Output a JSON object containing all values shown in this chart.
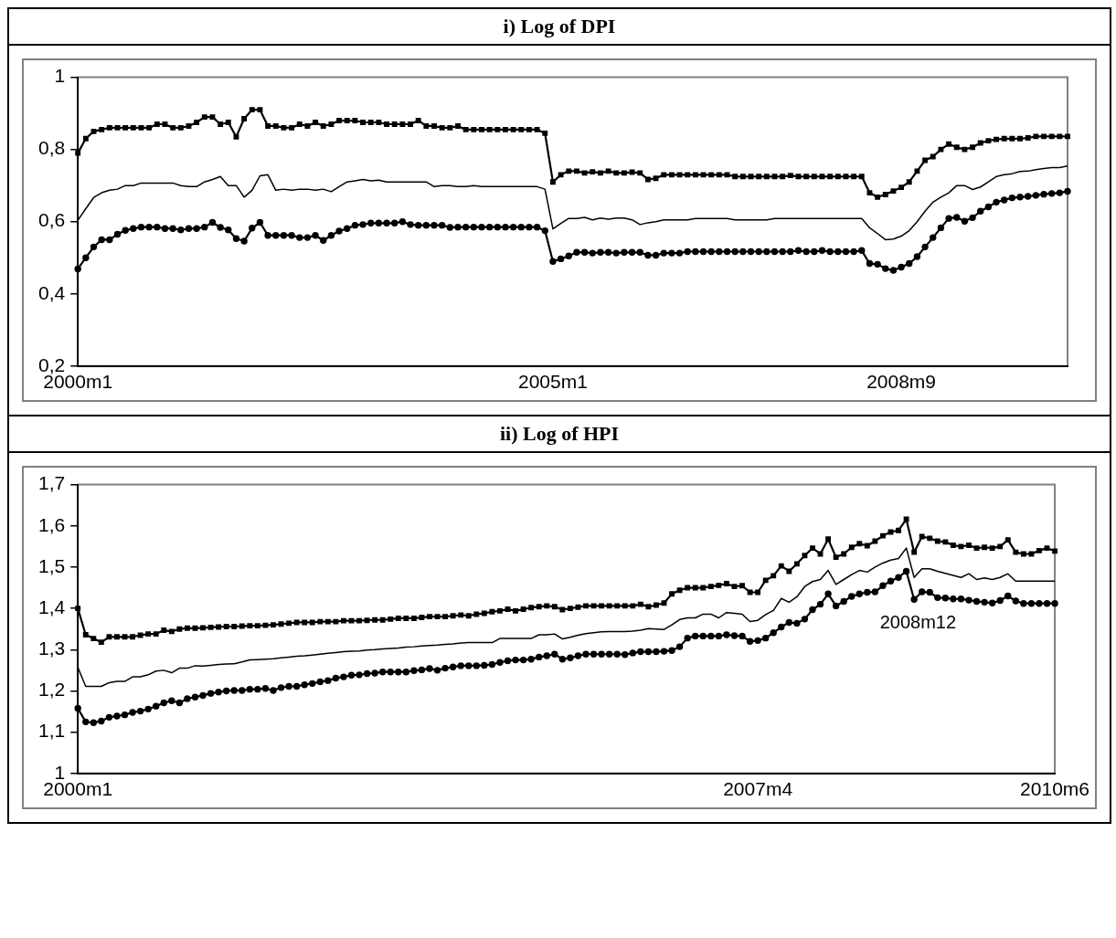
{
  "chart_data": [
    {
      "type": "line",
      "title": "i) Log of DPI",
      "categories": [
        "2000m1",
        null,
        null,
        null,
        null,
        null,
        null,
        null,
        null,
        null,
        null,
        null,
        null,
        null,
        null,
        null,
        null,
        null,
        null,
        null,
        null,
        null,
        null,
        null,
        null,
        null,
        null,
        null,
        null,
        null,
        null,
        null,
        null,
        null,
        null,
        null,
        null,
        null,
        null,
        null,
        null,
        null,
        null,
        null,
        null,
        null,
        null,
        null,
        null,
        null,
        null,
        null,
        null,
        null,
        null,
        null,
        null,
        null,
        null,
        null,
        "2005m1",
        null,
        null,
        null,
        null,
        null,
        null,
        null,
        null,
        null,
        null,
        null,
        null,
        null,
        null,
        null,
        null,
        null,
        null,
        null,
        null,
        null,
        null,
        null,
        null,
        null,
        null,
        null,
        null,
        null,
        null,
        null,
        null,
        null,
        null,
        null,
        null,
        null,
        null,
        null,
        null,
        null,
        null,
        null,
        "2008m9",
        null,
        null,
        null,
        null,
        null,
        null,
        null,
        null,
        null,
        null,
        null,
        null,
        null,
        null,
        null,
        null,
        null,
        null,
        null,
        null,
        null
      ],
      "ylim": [
        0.2,
        1
      ],
      "yticks": [
        {
          "value": 0.2,
          "label": "0,2"
        },
        {
          "value": 0.4,
          "label": "0,4"
        },
        {
          "value": 0.6,
          "label": "0,6"
        },
        {
          "value": 0.8,
          "label": "0,8"
        },
        1
      ],
      "grid": false,
      "legend": false,
      "series": [
        {
          "color": "#000000",
          "marker": "square",
          "values": [
            0.79,
            0.83,
            0.85,
            0.855,
            0.86,
            0.86,
            0.86,
            0.86,
            0.86,
            0.86,
            0.87,
            0.87,
            0.86,
            0.86,
            0.865,
            0.875,
            0.89,
            0.89,
            0.87,
            0.875,
            0.835,
            0.885,
            0.91,
            0.91,
            0.865,
            0.865,
            0.86,
            0.86,
            0.87,
            0.865,
            0.875,
            0.865,
            0.87,
            0.88,
            0.88,
            0.88,
            0.875,
            0.875,
            0.875,
            0.87,
            0.87,
            0.87,
            0.87,
            0.88,
            0.865,
            0.865,
            0.86,
            0.86,
            0.865,
            0.855,
            0.855,
            0.855,
            0.855,
            0.855,
            0.855,
            0.855,
            0.855,
            0.855,
            0.855,
            0.845,
            0.71,
            0.73,
            0.74,
            0.74,
            0.735,
            0.738,
            0.735,
            0.74,
            0.735,
            0.735,
            0.737,
            0.735,
            0.717,
            0.72,
            0.73,
            0.73,
            0.73,
            0.73,
            0.73,
            0.73,
            0.73,
            0.73,
            0.73,
            0.725,
            0.725,
            0.725,
            0.725,
            0.725,
            0.725,
            0.725,
            0.728,
            0.725,
            0.725,
            0.725,
            0.725,
            0.725,
            0.725,
            0.725,
            0.725,
            0.725,
            0.68,
            0.668,
            0.675,
            0.685,
            0.695,
            0.71,
            0.74,
            0.77,
            0.78,
            0.8,
            0.815,
            0.806,
            0.8,
            0.806,
            0.818,
            0.824,
            0.828,
            0.83,
            0.83,
            0.83,
            0.832,
            0.836,
            0.836,
            0.836,
            0.836,
            0.836
          ]
        },
        {
          "color": "#000000",
          "marker": "none",
          "values": [
            0.604,
            0.636,
            0.667,
            0.68,
            0.687,
            0.69,
            0.7,
            0.7,
            0.707,
            0.707,
            0.707,
            0.707,
            0.707,
            0.7,
            0.697,
            0.697,
            0.71,
            0.717,
            0.725,
            0.7,
            0.7,
            0.668,
            0.687,
            0.727,
            0.73,
            0.687,
            0.69,
            0.687,
            0.69,
            0.69,
            0.687,
            0.69,
            0.683,
            0.697,
            0.71,
            0.713,
            0.717,
            0.713,
            0.715,
            0.71,
            0.71,
            0.71,
            0.71,
            0.71,
            0.71,
            0.697,
            0.7,
            0.7,
            0.697,
            0.697,
            0.7,
            0.697,
            0.697,
            0.697,
            0.697,
            0.697,
            0.697,
            0.697,
            0.697,
            0.69,
            0.58,
            0.595,
            0.609,
            0.609,
            0.612,
            0.605,
            0.61,
            0.607,
            0.61,
            0.61,
            0.605,
            0.592,
            0.597,
            0.6,
            0.605,
            0.605,
            0.605,
            0.605,
            0.609,
            0.609,
            0.609,
            0.609,
            0.609,
            0.605,
            0.605,
            0.605,
            0.605,
            0.605,
            0.609,
            0.609,
            0.609,
            0.609,
            0.609,
            0.609,
            0.609,
            0.609,
            0.609,
            0.609,
            0.609,
            0.609,
            0.583,
            0.567,
            0.55,
            0.552,
            0.56,
            0.575,
            0.6,
            0.629,
            0.654,
            0.668,
            0.68,
            0.7,
            0.7,
            0.689,
            0.696,
            0.71,
            0.725,
            0.73,
            0.733,
            0.739,
            0.74,
            0.744,
            0.747,
            0.75,
            0.75,
            0.754
          ]
        },
        {
          "color": "#000000",
          "marker": "circle",
          "values": [
            0.469,
            0.5,
            0.53,
            0.55,
            0.55,
            0.565,
            0.576,
            0.581,
            0.585,
            0.585,
            0.585,
            0.581,
            0.581,
            0.577,
            0.581,
            0.581,
            0.585,
            0.598,
            0.584,
            0.577,
            0.553,
            0.546,
            0.582,
            0.598,
            0.562,
            0.562,
            0.562,
            0.562,
            0.556,
            0.556,
            0.562,
            0.548,
            0.562,
            0.574,
            0.581,
            0.59,
            0.592,
            0.596,
            0.596,
            0.596,
            0.596,
            0.6,
            0.592,
            0.59,
            0.59,
            0.59,
            0.59,
            0.584,
            0.585,
            0.585,
            0.585,
            0.585,
            0.585,
            0.585,
            0.585,
            0.585,
            0.585,
            0.585,
            0.585,
            0.575,
            0.49,
            0.497,
            0.505,
            0.515,
            0.515,
            0.513,
            0.515,
            0.515,
            0.513,
            0.515,
            0.515,
            0.515,
            0.507,
            0.507,
            0.513,
            0.513,
            0.513,
            0.517,
            0.517,
            0.517,
            0.517,
            0.517,
            0.517,
            0.517,
            0.517,
            0.517,
            0.517,
            0.517,
            0.517,
            0.517,
            0.517,
            0.52,
            0.517,
            0.517,
            0.52,
            0.517,
            0.517,
            0.517,
            0.517,
            0.52,
            0.484,
            0.482,
            0.47,
            0.465,
            0.474,
            0.484,
            0.503,
            0.53,
            0.556,
            0.583,
            0.609,
            0.612,
            0.601,
            0.611,
            0.629,
            0.641,
            0.654,
            0.66,
            0.666,
            0.668,
            0.67,
            0.673,
            0.676,
            0.678,
            0.68,
            0.684
          ]
        }
      ]
    },
    {
      "type": "line",
      "title": "ii) Log of HPI",
      "categories": [
        "2000m1",
        null,
        null,
        null,
        null,
        null,
        null,
        null,
        null,
        null,
        null,
        null,
        null,
        null,
        null,
        null,
        null,
        null,
        null,
        null,
        null,
        null,
        null,
        null,
        null,
        null,
        null,
        null,
        null,
        null,
        null,
        null,
        null,
        null,
        null,
        null,
        null,
        null,
        null,
        null,
        null,
        null,
        null,
        null,
        null,
        null,
        null,
        null,
        null,
        null,
        null,
        null,
        null,
        null,
        null,
        null,
        null,
        null,
        null,
        null,
        null,
        null,
        null,
        null,
        null,
        null,
        null,
        null,
        null,
        null,
        null,
        null,
        null,
        null,
        null,
        null,
        null,
        null,
        null,
        null,
        null,
        null,
        null,
        null,
        null,
        null,
        null,
        "2007m4",
        null,
        null,
        null,
        null,
        null,
        null,
        null,
        null,
        null,
        null,
        null,
        null,
        null,
        null,
        null,
        null,
        null,
        null,
        null,
        null,
        null,
        null,
        null,
        null,
        null,
        null,
        null,
        null,
        null,
        null,
        null,
        null,
        null,
        null,
        null,
        null,
        null,
        "2010m6"
      ],
      "ylim": [
        1,
        1.7
      ],
      "yticks": [
        1,
        {
          "value": 1.1,
          "label": "1,1"
        },
        {
          "value": 1.2,
          "label": "1,2"
        },
        {
          "value": 1.3,
          "label": "1,3"
        },
        {
          "value": 1.4,
          "label": "1,4"
        },
        {
          "value": 1.5,
          "label": "1,5"
        },
        {
          "value": 1.6,
          "label": "1,6"
        },
        {
          "value": 1.7,
          "label": "1,7"
        }
      ],
      "grid": false,
      "legend": false,
      "annotations": [
        "2008m12"
      ],
      "series": [
        {
          "color": "#000000",
          "marker": "square",
          "values": [
            1.4,
            1.336,
            1.327,
            1.318,
            1.331,
            1.331,
            1.331,
            1.331,
            1.335,
            1.338,
            1.338,
            1.347,
            1.344,
            1.35,
            1.352,
            1.352,
            1.353,
            1.354,
            1.355,
            1.356,
            1.356,
            1.357,
            1.358,
            1.358,
            1.359,
            1.36,
            1.362,
            1.364,
            1.366,
            1.366,
            1.366,
            1.368,
            1.368,
            1.368,
            1.37,
            1.37,
            1.37,
            1.371,
            1.372,
            1.372,
            1.374,
            1.376,
            1.376,
            1.376,
            1.378,
            1.38,
            1.38,
            1.38,
            1.382,
            1.384,
            1.382,
            1.386,
            1.388,
            1.392,
            1.394,
            1.398,
            1.394,
            1.398,
            1.402,
            1.404,
            1.406,
            1.404,
            1.397,
            1.4,
            1.403,
            1.406,
            1.406,
            1.406,
            1.406,
            1.406,
            1.406,
            1.406,
            1.41,
            1.404,
            1.408,
            1.413,
            1.435,
            1.444,
            1.45,
            1.45,
            1.45,
            1.453,
            1.456,
            1.46,
            1.453,
            1.455,
            1.439,
            1.439,
            1.468,
            1.479,
            1.503,
            1.49,
            1.508,
            1.528,
            1.546,
            1.532,
            1.568,
            1.524,
            1.532,
            1.548,
            1.557,
            1.552,
            1.563,
            1.576,
            1.585,
            1.589,
            1.616,
            1.536,
            1.574,
            1.57,
            1.563,
            1.561,
            1.553,
            1.55,
            1.553,
            1.546,
            1.548,
            1.546,
            1.55,
            1.566,
            1.536,
            1.532,
            1.532,
            1.54,
            1.546,
            1.539
          ]
        },
        {
          "color": "#000000",
          "marker": "none",
          "values": [
            1.257,
            1.211,
            1.211,
            1.211,
            1.22,
            1.223,
            1.223,
            1.234,
            1.234,
            1.239,
            1.248,
            1.25,
            1.244,
            1.255,
            1.255,
            1.261,
            1.26,
            1.262,
            1.264,
            1.265,
            1.266,
            1.27,
            1.275,
            1.276,
            1.277,
            1.278,
            1.28,
            1.282,
            1.284,
            1.285,
            1.287,
            1.289,
            1.291,
            1.293,
            1.295,
            1.296,
            1.297,
            1.299,
            1.3,
            1.302,
            1.303,
            1.304,
            1.306,
            1.307,
            1.309,
            1.31,
            1.311,
            1.313,
            1.314,
            1.316,
            1.317,
            1.317,
            1.317,
            1.317,
            1.327,
            1.327,
            1.327,
            1.327,
            1.327,
            1.336,
            1.336,
            1.338,
            1.326,
            1.33,
            1.335,
            1.339,
            1.341,
            1.343,
            1.344,
            1.344,
            1.344,
            1.345,
            1.347,
            1.351,
            1.35,
            1.349,
            1.36,
            1.373,
            1.377,
            1.377,
            1.386,
            1.386,
            1.377,
            1.39,
            1.388,
            1.386,
            1.368,
            1.371,
            1.385,
            1.395,
            1.424,
            1.415,
            1.428,
            1.453,
            1.465,
            1.47,
            1.492,
            1.458,
            1.47,
            1.482,
            1.492,
            1.488,
            1.5,
            1.51,
            1.517,
            1.521,
            1.546,
            1.475,
            1.496,
            1.496,
            1.49,
            1.485,
            1.48,
            1.475,
            1.484,
            1.47,
            1.474,
            1.47,
            1.475,
            1.484,
            1.466,
            1.466,
            1.466,
            1.466,
            1.466,
            1.466
          ]
        },
        {
          "color": "#000000",
          "marker": "circle",
          "values": [
            1.158,
            1.125,
            1.123,
            1.127,
            1.136,
            1.139,
            1.142,
            1.148,
            1.151,
            1.156,
            1.163,
            1.171,
            1.176,
            1.171,
            1.181,
            1.185,
            1.189,
            1.194,
            1.197,
            1.2,
            1.201,
            1.201,
            1.204,
            1.204,
            1.206,
            1.201,
            1.208,
            1.211,
            1.211,
            1.215,
            1.218,
            1.222,
            1.225,
            1.231,
            1.234,
            1.238,
            1.239,
            1.242,
            1.243,
            1.246,
            1.246,
            1.246,
            1.246,
            1.249,
            1.251,
            1.254,
            1.25,
            1.255,
            1.258,
            1.261,
            1.261,
            1.261,
            1.262,
            1.264,
            1.269,
            1.273,
            1.275,
            1.275,
            1.277,
            1.282,
            1.285,
            1.289,
            1.277,
            1.28,
            1.285,
            1.289,
            1.289,
            1.289,
            1.289,
            1.289,
            1.288,
            1.292,
            1.295,
            1.295,
            1.295,
            1.296,
            1.298,
            1.307,
            1.328,
            1.333,
            1.333,
            1.333,
            1.333,
            1.336,
            1.334,
            1.333,
            1.32,
            1.322,
            1.328,
            1.341,
            1.355,
            1.366,
            1.364,
            1.374,
            1.397,
            1.41,
            1.435,
            1.406,
            1.417,
            1.429,
            1.435,
            1.439,
            1.44,
            1.455,
            1.466,
            1.475,
            1.49,
            1.422,
            1.44,
            1.439,
            1.426,
            1.425,
            1.423,
            1.423,
            1.42,
            1.417,
            1.415,
            1.413,
            1.419,
            1.43,
            1.418,
            1.412,
            1.412,
            1.412,
            1.412,
            1.412
          ]
        }
      ]
    }
  ]
}
